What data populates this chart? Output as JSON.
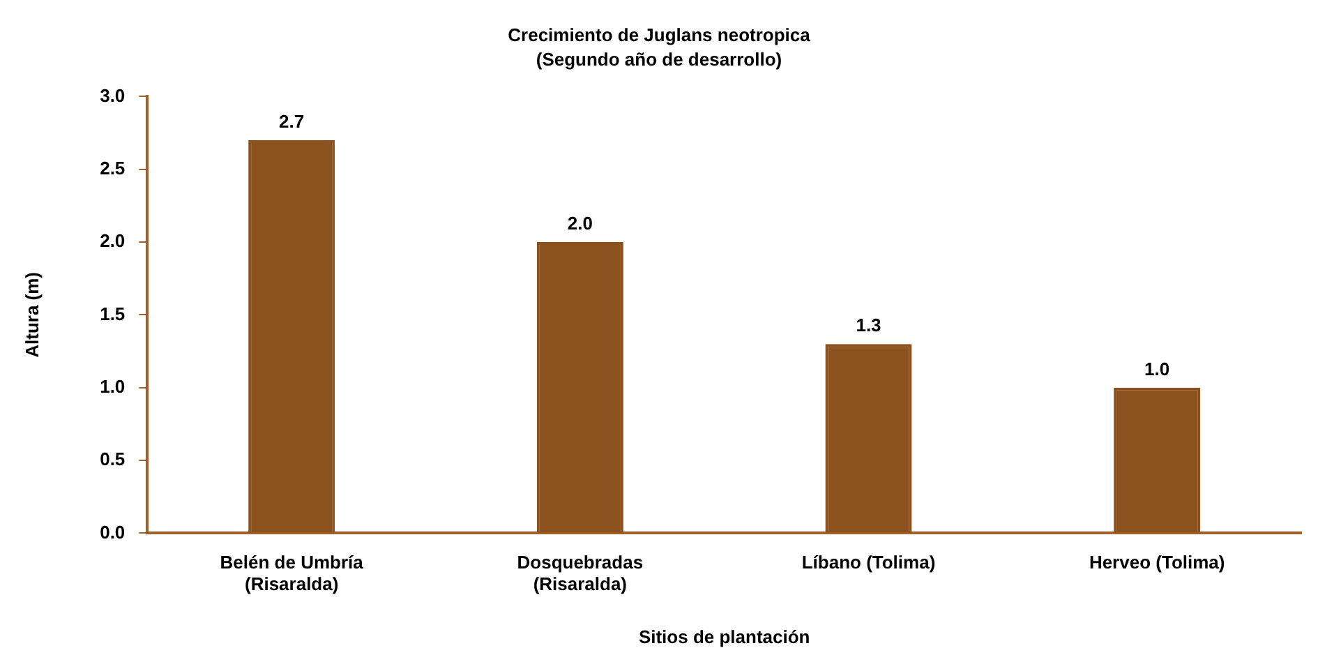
{
  "chart_data": {
    "type": "bar",
    "title": "Crecimiento de Juglans neotropica",
    "subtitle": "(Segundo año de desarrollo)",
    "xlabel": "Sitios de plantación",
    "ylabel": "Altura (m)",
    "categories": [
      "Belén de Umbría (Risaralda)",
      "Dosquebradas (Risaralda)",
      "Líbano (Tolima)",
      "Herveo (Tolima)"
    ],
    "values": [
      2.7,
      2.0,
      1.3,
      1.0
    ],
    "value_labels": [
      "2.7",
      "2.0",
      "1.3",
      "1.0"
    ],
    "color": "#8b5220",
    "ylim": [
      0,
      3
    ],
    "yticks": [
      {
        "value": 0,
        "label": "0.0"
      },
      {
        "value": 0.5,
        "label": "0.5"
      },
      {
        "value": 1,
        "label": "1.0"
      },
      {
        "value": 1.5,
        "label": "1.5"
      },
      {
        "value": 2,
        "label": "2.0"
      },
      {
        "value": 2.5,
        "label": "2.5"
      },
      {
        "value": 3,
        "label": "3.0"
      }
    ],
    "grid": false,
    "legend": false
  }
}
